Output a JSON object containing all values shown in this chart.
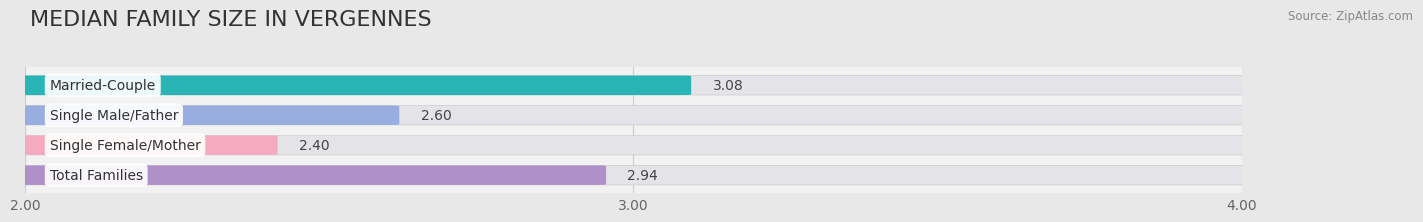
{
  "title": "MEDIAN FAMILY SIZE IN VERGENNES",
  "source": "Source: ZipAtlas.com",
  "categories": [
    "Married-Couple",
    "Single Male/Father",
    "Single Female/Mother",
    "Total Families"
  ],
  "values": [
    3.08,
    2.6,
    2.4,
    2.94
  ],
  "bar_colors": [
    "#29b5b5",
    "#99aee0",
    "#f5aac0",
    "#b090c8"
  ],
  "xlim_min": 2.0,
  "xlim_max": 4.0,
  "xticks": [
    2.0,
    3.0,
    4.0
  ],
  "xtick_labels": [
    "2.00",
    "3.00",
    "4.00"
  ],
  "bar_height": 0.62,
  "background_color": "#e8e8e8",
  "plot_bg_color": "#f2f2f2",
  "bar_bg_color": "#e4e4e8",
  "title_fontsize": 16,
  "label_fontsize": 10,
  "value_fontsize": 10,
  "tick_fontsize": 10,
  "x_min": 2.0,
  "x_max": 4.0
}
